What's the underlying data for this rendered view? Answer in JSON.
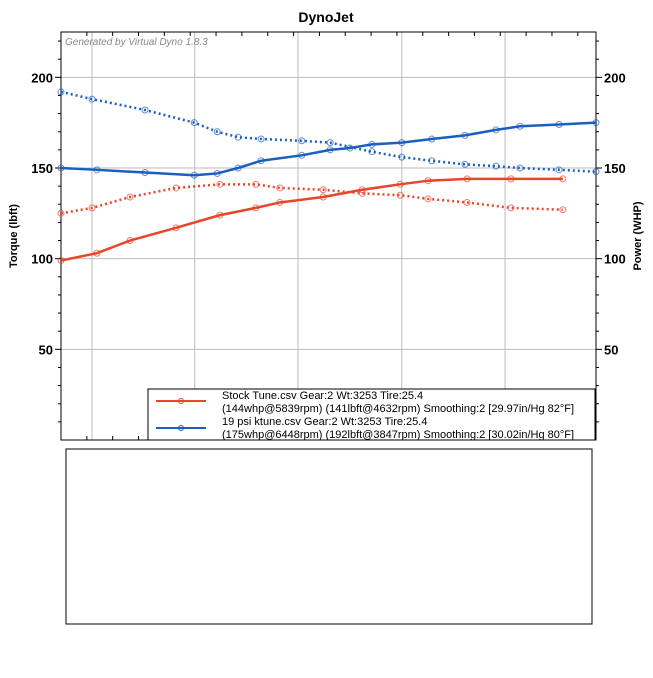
{
  "chart_data": {
    "type": "line",
    "title": "DynoJet",
    "watermark": "Generated by Virtual Dyno 1.8.3",
    "ylabel": "Torque (lbft)",
    "y2label": "Power (WHP)",
    "xlabel": "",
    "xlim": [
      0,
      100
    ],
    "ylim": [
      0,
      225
    ],
    "yticks": [
      50,
      100,
      150,
      200
    ],
    "xgrid": [
      5.8,
      25,
      44.3,
      63.7,
      83
    ],
    "grid": true,
    "legend_position": "bottom-right",
    "series": [
      {
        "name": "19 psi ktune torque",
        "run": 1,
        "style": "dotted",
        "color": "#1a5fbf",
        "x": [
          0,
          5.8,
          15.7,
          24.9,
          29.2,
          33.1,
          37.4,
          45,
          50.3,
          58.1,
          63.7,
          69.3,
          75.5,
          81.3,
          85.8,
          93.1,
          100
        ],
        "y": [
          192,
          188,
          182,
          175,
          170,
          167,
          166,
          165,
          164,
          159,
          156,
          154,
          152,
          151,
          150,
          149,
          148
        ]
      },
      {
        "name": "19 psi ktune power",
        "run": 1,
        "style": "solid",
        "color": "#1a5fbf",
        "x": [
          0,
          6.7,
          15.7,
          24.9,
          29.2,
          33.1,
          37.4,
          45,
          50.3,
          54,
          58.1,
          63.7,
          69.3,
          75.5,
          81.3,
          85.8,
          93.1,
          100
        ],
        "y": [
          150,
          149,
          147.5,
          146,
          147,
          150,
          154,
          157,
          160,
          161,
          163,
          164,
          166,
          168,
          171,
          173,
          174,
          175
        ]
      },
      {
        "name": "Stock Tune torque",
        "run": 0,
        "style": "dotted",
        "color": "#e8452a",
        "x": [
          0,
          5.8,
          12.9,
          21.5,
          29.7,
          36.4,
          40.9,
          49,
          56.3,
          63.4,
          68.6,
          75.9,
          84.1,
          93.8
        ],
        "y": [
          125,
          128,
          134,
          139,
          141,
          141,
          139,
          138,
          136,
          135,
          133,
          131,
          128,
          127
        ]
      },
      {
        "name": "Stock Tune power",
        "run": 0,
        "style": "solid",
        "color": "#e8452a",
        "x": [
          0,
          6.7,
          12.9,
          21.5,
          29.7,
          36.4,
          40.9,
          49,
          56.3,
          63.4,
          68.6,
          75.9,
          84.1,
          93.8
        ],
        "y": [
          99,
          103,
          110,
          117,
          124,
          128,
          131,
          134,
          138,
          141,
          143,
          144,
          144,
          144
        ]
      }
    ],
    "legend": [
      {
        "color": "#e8452a",
        "line1": "Stock Tune.csv Gear:2 Wt:3253 Tire:25.4",
        "line2": "(144whp@5839rpm) (141lbft@4632rpm) Smoothing:2 [29.97in/Hg 82°F]"
      },
      {
        "color": "#1a5fbf",
        "line1": "19 psi ktune.csv Gear:2 Wt:3253 Tire:25.4",
        "line2": "(175whp@6448rpm) (192lbft@3847rpm) Smoothing:2 [30.02in/Hg 80°F]"
      }
    ]
  }
}
